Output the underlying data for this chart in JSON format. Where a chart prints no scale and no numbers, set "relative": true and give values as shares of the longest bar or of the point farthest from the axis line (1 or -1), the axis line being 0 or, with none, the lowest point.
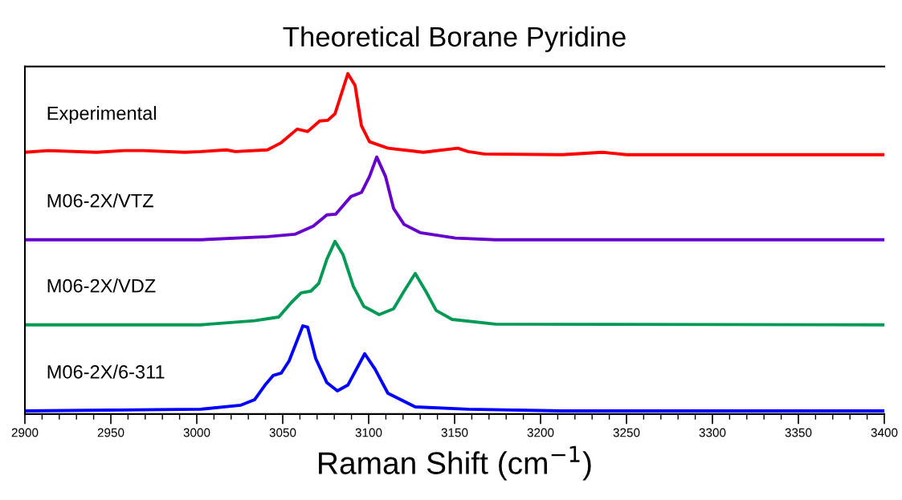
{
  "chart_data": {
    "type": "line",
    "title": "Theoretical Borane Pyridine",
    "xlabel": "Raman Shift (cm$^{−1}$)",
    "relative": true,
    "grid": false,
    "legend": false,
    "marker": "none",
    "line_style": "solid",
    "xlim": [
      2900,
      3400
    ],
    "xticks": [
      2900,
      {
        "value": 2910,
        "label": null
      },
      {
        "value": 2920,
        "label": null
      },
      {
        "value": 2930,
        "label": null
      },
      {
        "value": 2940,
        "label": null
      },
      2950,
      {
        "value": 2960,
        "label": null
      },
      {
        "value": 2970,
        "label": null
      },
      {
        "value": 2980,
        "label": null
      },
      {
        "value": 2990,
        "label": null
      },
      3000,
      {
        "value": 3010,
        "label": null
      },
      {
        "value": 3020,
        "label": null
      },
      {
        "value": 3030,
        "label": null
      },
      {
        "value": 3040,
        "label": null
      },
      3050,
      {
        "value": 3060,
        "label": null
      },
      {
        "value": 3070,
        "label": null
      },
      {
        "value": 3080,
        "label": null
      },
      {
        "value": 3090,
        "label": null
      },
      3100,
      {
        "value": 3110,
        "label": null
      },
      {
        "value": 3120,
        "label": null
      },
      {
        "value": 3130,
        "label": null
      },
      {
        "value": 3140,
        "label": null
      },
      3150,
      {
        "value": 3160,
        "label": null
      },
      {
        "value": 3170,
        "label": null
      },
      {
        "value": 3180,
        "label": null
      },
      {
        "value": 3190,
        "label": null
      },
      3200,
      {
        "value": 3210,
        "label": null
      },
      {
        "value": 3220,
        "label": null
      },
      {
        "value": 3230,
        "label": null
      },
      {
        "value": 3240,
        "label": null
      },
      3250,
      {
        "value": 3260,
        "label": null
      },
      {
        "value": 3270,
        "label": null
      },
      {
        "value": 3280,
        "label": null
      },
      {
        "value": 3290,
        "label": null
      },
      3300,
      {
        "value": 3310,
        "label": null
      },
      {
        "value": 3320,
        "label": null
      },
      {
        "value": 3330,
        "label": null
      },
      {
        "value": 3340,
        "label": null
      },
      3350,
      {
        "value": 3360,
        "label": null
      },
      {
        "value": 3370,
        "label": null
      },
      {
        "value": 3380,
        "label": null
      },
      {
        "value": 3390,
        "label": null
      },
      3400
    ],
    "series": [
      {
        "name": "Experimental",
        "color": "#ff0000",
        "x": [
          2900,
          2913.6,
          2941.6,
          2957.9,
          2968.7,
          2993,
          3002.3,
          3017.3,
          3022.4,
          3041.1,
          3049.1,
          3058.4,
          3064.5,
          3071.5,
          3076.2,
          3080.4,
          3087.9,
          3092.1,
          3095.8,
          3100.5,
          3111.2,
          3131.8,
          3151.9,
          3157.9,
          3167.3,
          3212.6,
          3236,
          3250,
          3400
        ],
        "values": [
          0.769,
          0.774,
          0.769,
          0.774,
          0.774,
          0.769,
          0.771,
          0.776,
          0.771,
          0.776,
          0.797,
          0.837,
          0.83,
          0.861,
          0.863,
          0.882,
          1.0,
          0.965,
          0.847,
          0.8,
          0.781,
          0.769,
          0.781,
          0.771,
          0.764,
          0.762,
          0.769,
          0.762,
          0.762
        ]
      },
      {
        "name": "M06-2X/VTZ",
        "color": "#6600cc",
        "x": [
          2900,
          3002.3,
          3041.1,
          3057,
          3067.8,
          3075.7,
          3080.8,
          3089.7,
          3095.8,
          3100.5,
          3104.7,
          3109.8,
          3114.5,
          3120.6,
          3129.9,
          3150.5,
          3173.8,
          3400
        ],
        "values": [
          0.512,
          0.512,
          0.521,
          0.528,
          0.552,
          0.585,
          0.587,
          0.639,
          0.651,
          0.698,
          0.755,
          0.698,
          0.604,
          0.557,
          0.533,
          0.517,
          0.512,
          0.512
        ]
      },
      {
        "name": "M06-2X/VDZ",
        "color": "#009955",
        "x": [
          2900,
          3002.3,
          3033.6,
          3047.7,
          3055.1,
          3060.7,
          3066.4,
          3071,
          3075.7,
          3080.4,
          3085,
          3091.1,
          3097.2,
          3106.1,
          3114.5,
          3120.6,
          3127.1,
          3133.2,
          3139.3,
          3148.6,
          3173.8,
          3400
        ],
        "values": [
          0.262,
          0.262,
          0.274,
          0.285,
          0.328,
          0.356,
          0.361,
          0.384,
          0.455,
          0.507,
          0.469,
          0.375,
          0.316,
          0.292,
          0.309,
          0.361,
          0.413,
          0.361,
          0.304,
          0.278,
          0.264,
          0.262
        ]
      },
      {
        "name": "M06-2X/6-311",
        "color": "#0000ff",
        "x": [
          2900,
          3002.3,
          3025.7,
          3033.6,
          3039.7,
          3044.4,
          3049.1,
          3053.7,
          3061.7,
          3064.5,
          3069.2,
          3075.7,
          3081.8,
          3087.9,
          3097.7,
          3103.7,
          3111.2,
          3127.1,
          3157.9,
          3212.6,
          3400
        ],
        "values": [
          0.009,
          0.014,
          0.026,
          0.042,
          0.085,
          0.113,
          0.12,
          0.156,
          0.259,
          0.255,
          0.163,
          0.092,
          0.068,
          0.085,
          0.177,
          0.132,
          0.061,
          0.021,
          0.014,
          0.009,
          0.009
        ]
      }
    ]
  }
}
